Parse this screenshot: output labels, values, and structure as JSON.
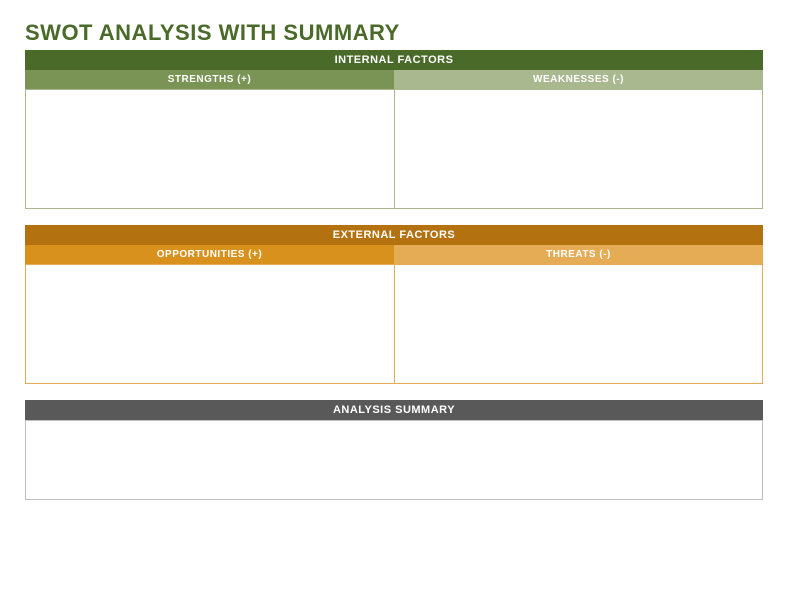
{
  "title": "SWOT ANALYSIS WITH SUMMARY",
  "title_color": "#4a6a2a",
  "internal": {
    "header": "INTERNAL FACTORS",
    "header_bg": "#4a6a2a",
    "left_label": "STRENGTHS (+)",
    "left_bg": "#7a9456",
    "right_label": "WEAKNESSES (-)",
    "right_bg": "#aab890",
    "body_border": "#aab890",
    "body_height": 120
  },
  "external": {
    "header": "EXTERNAL FACTORS",
    "header_bg": "#b3710f",
    "left_label": "OPPORTUNITIES (+)",
    "left_bg": "#d9911d",
    "right_label": "THREATS (-)",
    "right_bg": "#e5ab55",
    "body_border": "#e5ab55",
    "body_height": 120
  },
  "summary": {
    "header": "ANALYSIS SUMMARY",
    "header_bg": "#595959",
    "body_border": "#bfbfbf",
    "body_height": 80
  }
}
